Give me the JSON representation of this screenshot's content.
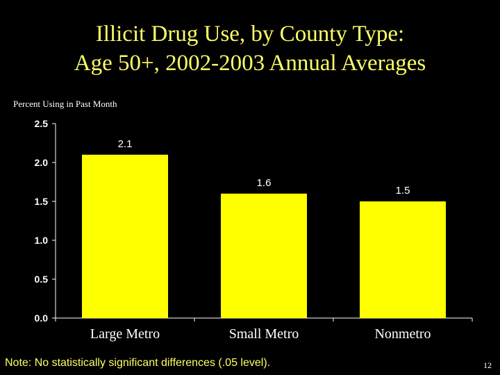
{
  "slide": {
    "title_line1": "Illicit Drug Use, by County Type:",
    "title_line2": "Age 50+, 2002-2003 Annual Averages",
    "note": "Note: No statistically significant differences (.05 level).",
    "slide_number": "12"
  },
  "colors": {
    "background": "#000000",
    "title": "#FFFF66",
    "bar": "#FFFF00",
    "text": "#FFFFFF"
  },
  "chart_data": {
    "type": "bar",
    "title": "",
    "ylabel": "Percent Using in Past Month",
    "xlabel": "",
    "categories": [
      "Large Metro",
      "Small Metro",
      "Nonmetro"
    ],
    "values": [
      2.1,
      1.6,
      1.5
    ],
    "value_labels": [
      "2.1",
      "1.6",
      "1.5"
    ],
    "ylim": [
      0,
      2.5
    ],
    "yticks": [
      0.0,
      0.5,
      1.0,
      1.5,
      2.0,
      2.5
    ],
    "ytick_labels": [
      "0.0",
      "0.5",
      "1.0",
      "1.5",
      "2.0",
      "2.5"
    ],
    "grid": false,
    "legend": "none"
  }
}
